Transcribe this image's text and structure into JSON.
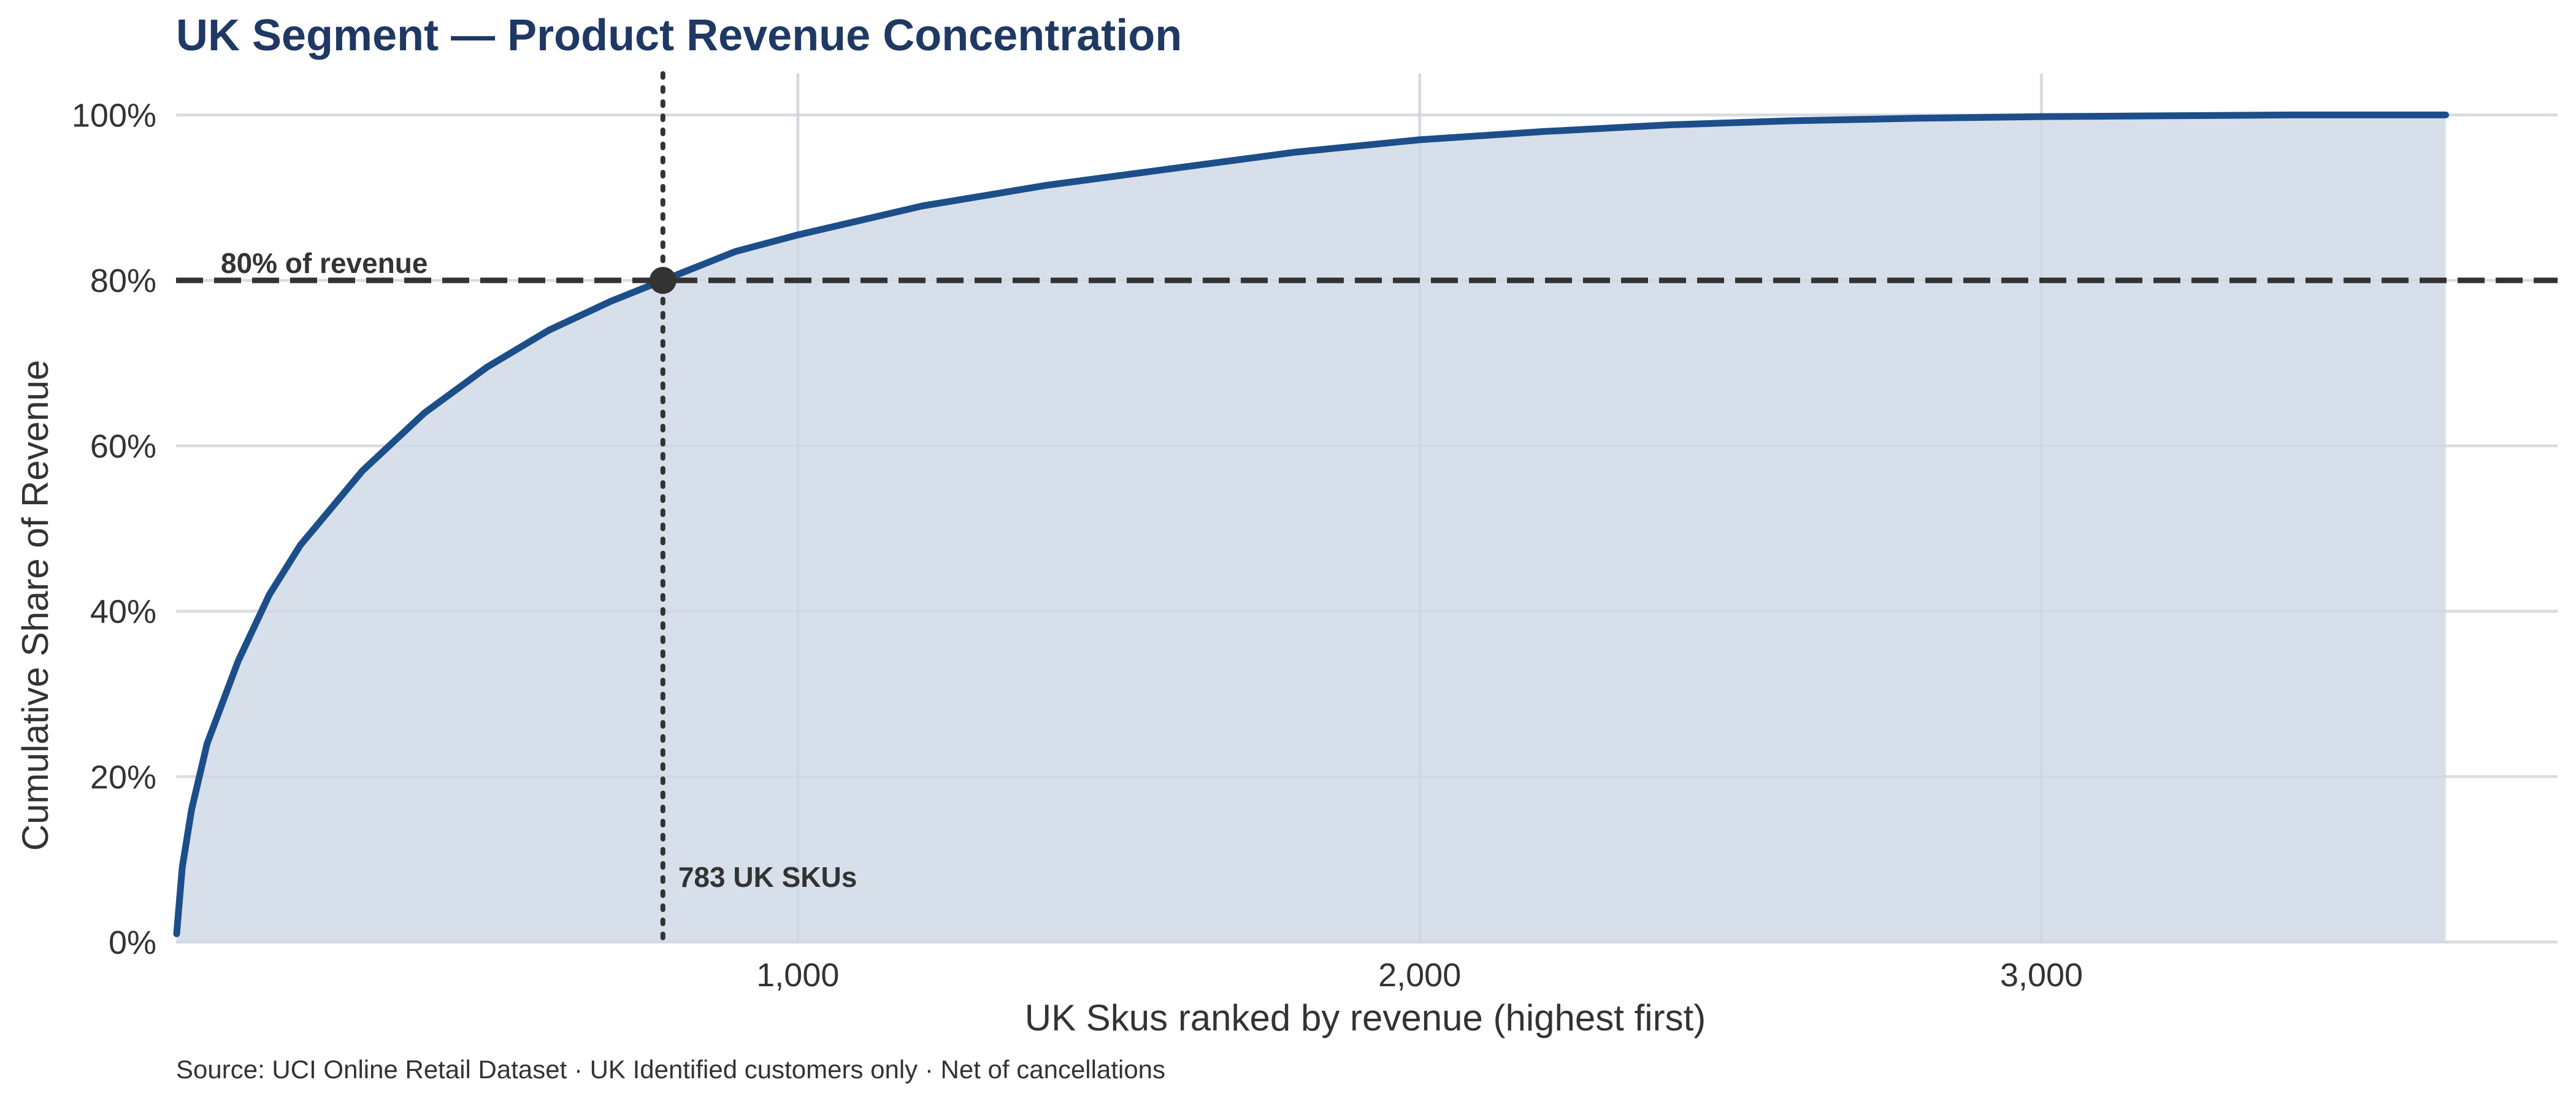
{
  "chart_data": {
    "type": "area",
    "title": "UK Segment — Product Revenue Concentration",
    "xlabel": "UK Skus ranked by revenue (highest first)",
    "ylabel": "Cumulative Share of Revenue",
    "xlim": [
      0,
      3830
    ],
    "ylim": [
      0,
      105
    ],
    "x_ticks": [
      1000,
      2000,
      3000
    ],
    "x_tick_labels": [
      "1,000",
      "2,000",
      "3,000"
    ],
    "y_ticks": [
      0,
      20,
      40,
      60,
      80,
      100
    ],
    "y_tick_labels": [
      "0%",
      "20%",
      "40%",
      "60%",
      "80%",
      "100%"
    ],
    "grid": true,
    "series": [
      {
        "x": [
          1,
          10,
          25,
          50,
          100,
          150,
          200,
          300,
          400,
          500,
          600,
          700,
          783,
          900,
          1000,
          1200,
          1400,
          1600,
          1800,
          2000,
          2200,
          2400,
          2600,
          2800,
          3000,
          3200,
          3400,
          3650
        ],
        "y": [
          1,
          9,
          16,
          24,
          34,
          42,
          48,
          57,
          64,
          69.5,
          74,
          77.5,
          80,
          83.5,
          85.5,
          89,
          91.5,
          93.5,
          95.5,
          97,
          98,
          98.8,
          99.3,
          99.6,
          99.8,
          99.9,
          100,
          100
        ],
        "color": "#1c4e8a",
        "fill": "#d7dfea"
      }
    ],
    "reference_lines": [
      {
        "axis": "y",
        "value": 80,
        "style": "dashed",
        "label": "80% of revenue"
      },
      {
        "axis": "x",
        "value": 783,
        "style": "dotted",
        "label": "783 UK SKUs"
      }
    ],
    "marker": {
      "x": 783,
      "y": 80
    },
    "source_note": "Source: UCI Online Retail Dataset · UK Identified customers only · Net of cancellations"
  }
}
